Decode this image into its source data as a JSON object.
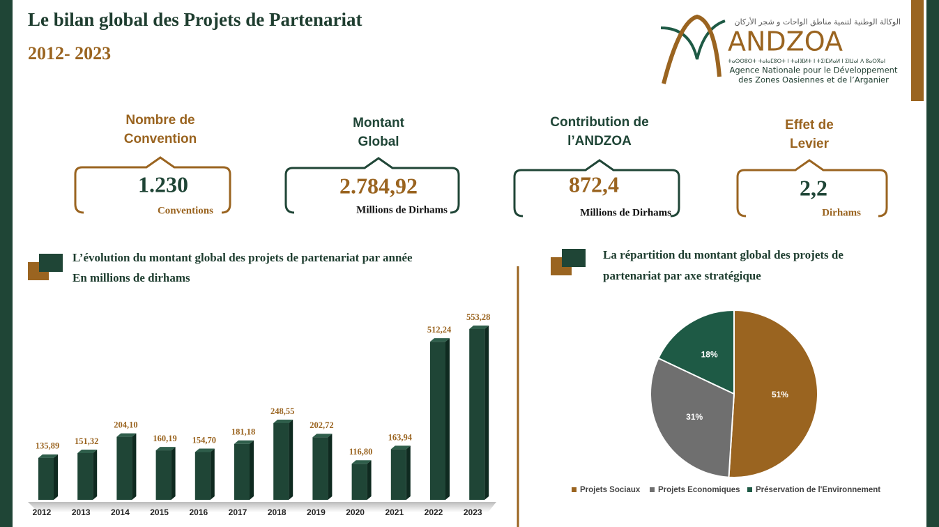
{
  "header": {
    "title": "Le bilan global des Projets de Partenariat",
    "period": "2012- 2023"
  },
  "logo": {
    "arabic": "الوكالة الوطنية لتنمية مناطق الواحات و شجر الأركان",
    "name": "ANDZOA",
    "tifinagh": "ⵜⴰⵙⵙⵓⵔⵜ ⵜⴰⵏⴰⵎⵓⵔⵜ ⵏ ⵜⴰⵏⴼⵍⵜ ⵏ ⵜⵉⵏⵎⵍⴰⵍ ⵏ ⵉⵏⵡⴰⵏ ⴷ ⵓⴰⵔⴳⴰⵏ",
    "line1": "Agence Nationale pour le Développement",
    "line2": "des Zones Oasiennes et de l’Arganier"
  },
  "kpis": [
    {
      "label": [
        "Nombre de",
        "Convention"
      ],
      "value": "1.230",
      "unit": "Conventions"
    },
    {
      "label": [
        "Montant",
        "Global"
      ],
      "value": "2.784,92",
      "unit": "Millions de Dirhams"
    },
    {
      "label": [
        "Contribution de",
        "l’ANDZOA"
      ],
      "value": "872,4",
      "unit": "Millions de Dirhams"
    },
    {
      "label": [
        "Effet de",
        "Levier"
      ],
      "value": "2,2",
      "unit": "Dirhams"
    }
  ],
  "chart_data": [
    {
      "type": "bar",
      "title": "L’évolution du montant global des projets de partenariat par année",
      "subtitle": "En millions de dirhams",
      "categories": [
        "2012",
        "2013",
        "2014",
        "2015",
        "2016",
        "2017",
        "2018",
        "2019",
        "2020",
        "2021",
        "2022",
        "2023"
      ],
      "values": [
        135.89,
        151.32,
        204.1,
        160.19,
        154.7,
        181.18,
        248.55,
        202.72,
        116.8,
        163.94,
        512.24,
        553.28
      ],
      "value_labels": [
        "135,89",
        "151,32",
        "204,10",
        "160,19",
        "154,70",
        "181,18",
        "248,55",
        "202,72",
        "116,80",
        "163,94",
        "512,24",
        "553,28"
      ],
      "color": "#1f4536"
    },
    {
      "type": "pie",
      "title": [
        "La répartition du montant global des projets de",
        "partenariat  par axe stratégique"
      ],
      "categories": [
        "Projets Sociaux",
        "Projets Economiques",
        "Préservation de l'Environnement"
      ],
      "values": [
        51,
        31,
        18
      ],
      "value_labels": [
        "51%",
        "31%",
        "18%"
      ],
      "colors": [
        "#9a6420",
        "#6f6f6f",
        "#1e5a45"
      ]
    }
  ]
}
